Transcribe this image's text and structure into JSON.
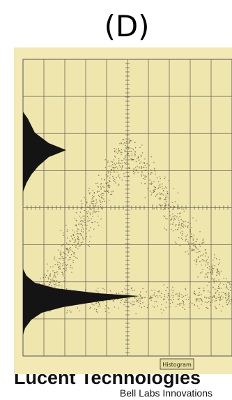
{
  "label": "(D)",
  "screen": {
    "badge": "Histogram"
  },
  "footer": {
    "brand": "Lucent Technologies",
    "tagline": "Bell Labs Innovations"
  }
}
